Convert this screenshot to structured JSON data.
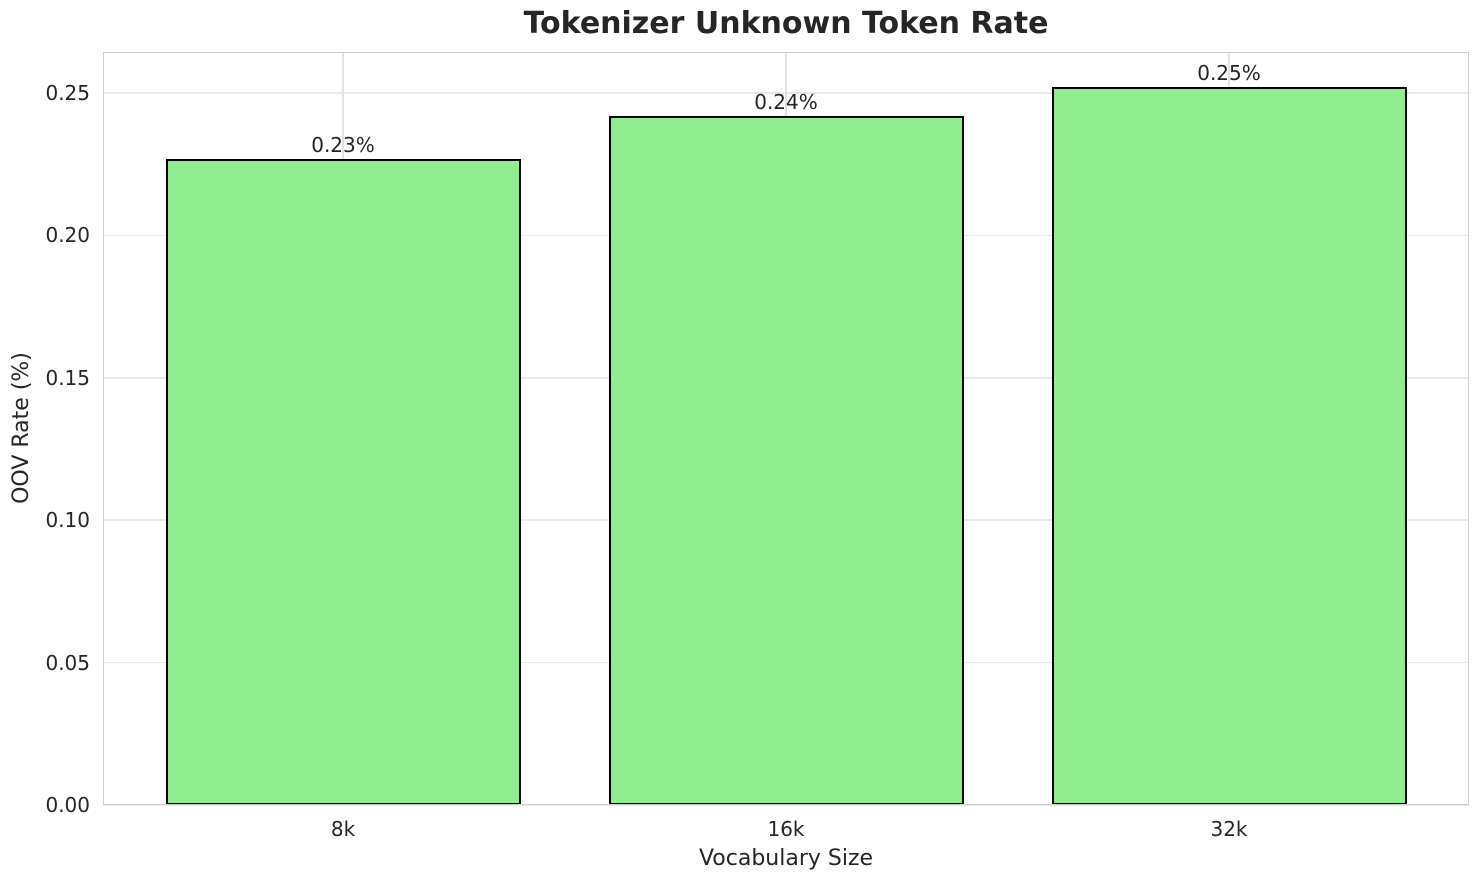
{
  "chart_data": {
    "type": "bar",
    "title": "Tokenizer Unknown Token Rate",
    "xlabel": "Vocabulary Size",
    "ylabel": "OOV Rate (%)",
    "categories": [
      "8k",
      "16k",
      "32k"
    ],
    "values": [
      0.227,
      0.242,
      0.252
    ],
    "bar_labels": [
      "0.23%",
      "0.24%",
      "0.25%"
    ],
    "yticks": [
      0.0,
      0.05,
      0.1,
      0.15,
      0.2,
      0.25
    ],
    "ytick_labels": [
      "0.00",
      "0.05",
      "0.10",
      "0.15",
      "0.20",
      "0.25"
    ],
    "ylim": [
      0,
      0.2644
    ],
    "grid": true,
    "legend": "none",
    "colors": {
      "bar_fill": "#90EE90",
      "bar_edge": "#000000",
      "text": "#262626",
      "gridline": "#e9e9e9",
      "spine": "#d0d0d0",
      "background": "#ffffff"
    }
  }
}
